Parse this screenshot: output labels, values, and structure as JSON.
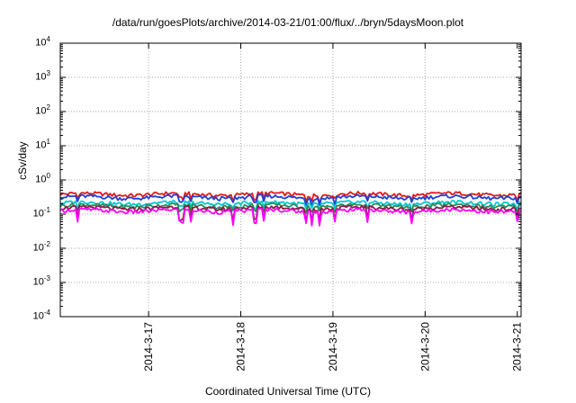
{
  "chart_data": {
    "type": "line",
    "title": "/data/run/goesPlots/archive/2014-03-21/01:00/flux/../bryn/5daysMoon.plot",
    "xlabel": "Coordinated Universal Time (UTC)",
    "ylabel": "cSv/day",
    "yscale": "log",
    "ylim": [
      0.0001,
      10000
    ],
    "xlim": [
      "2014-03-16 01:00",
      "2014-03-21 01:00"
    ],
    "grid": true,
    "x_ticks": [
      "2014-3-17",
      "2014-3-18",
      "2014-3-19",
      "2014-3-20",
      "2014-3-21"
    ],
    "y_ticks": [
      {
        "base": "10",
        "exp": "4"
      },
      {
        "base": "10",
        "exp": "3"
      },
      {
        "base": "10",
        "exp": "2"
      },
      {
        "base": "10",
        "exp": "1"
      },
      {
        "base": "10",
        "exp": "0"
      },
      {
        "base": "10",
        "exp": "-1"
      },
      {
        "base": "10",
        "exp": "-2"
      },
      {
        "base": "10",
        "exp": "-3"
      },
      {
        "base": "10",
        "exp": "-4"
      }
    ],
    "series": [
      {
        "color": "#e31a1c",
        "level": 0.38
      },
      {
        "color": "#1f3fd6",
        "level": 0.31
      },
      {
        "color": "#00c8d2",
        "level": 0.21
      },
      {
        "color": "#2e8b57",
        "level": 0.175
      },
      {
        "color": "#8b1a4a",
        "level": 0.15
      },
      {
        "color": "#ff00ff",
        "level": 0.125
      }
    ]
  }
}
